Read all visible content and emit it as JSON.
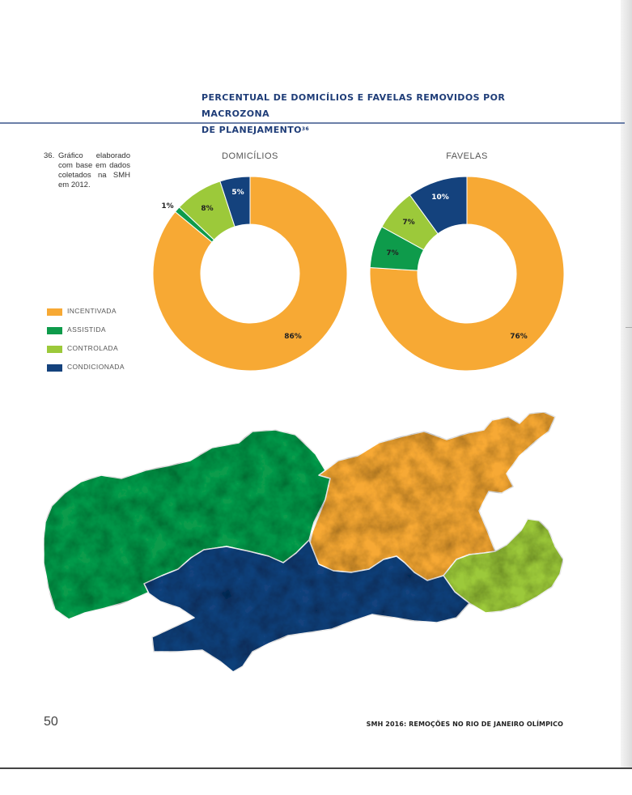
{
  "heading": {
    "line1": "PERCENTUAL DE DOMICÍLIOS E FAVELAS REMOVIDOS POR MACROZONA",
    "line2": "DE PLANEJAMENTO",
    "superscript": "36"
  },
  "footnote": {
    "number": "36.",
    "text": "Gráfico elaborado com base em dados coletados na SMH em 2012."
  },
  "legend": [
    {
      "label": "INCENTIVADA",
      "color": "#f7a934"
    },
    {
      "label": "ASSISTIDA",
      "color": "#0e9b4b"
    },
    {
      "label": "CONTROLADA",
      "color": "#9cc93a"
    },
    {
      "label": "CONDICIONADA",
      "color": "#14427d"
    }
  ],
  "chart_data": [
    {
      "type": "pie",
      "title": "DOMICÍLIOS",
      "donut": true,
      "categories": [
        "INCENTIVADA",
        "ASSISTIDA",
        "CONTROLADA",
        "CONDICIONADA"
      ],
      "values": [
        86,
        1,
        8,
        5
      ],
      "labels": [
        "86%",
        "1%",
        "8%",
        "5%"
      ],
      "colors": [
        "#f7a934",
        "#0e9b4b",
        "#9cc93a",
        "#14427d"
      ]
    },
    {
      "type": "pie",
      "title": "FAVELAS",
      "donut": true,
      "categories": [
        "INCENTIVADA",
        "ASSISTIDA",
        "CONTROLADA",
        "CONDICIONADA"
      ],
      "values": [
        76,
        7,
        7,
        10
      ],
      "labels": [
        "76%",
        "7%",
        "7%",
        "10%"
      ],
      "colors": [
        "#f7a934",
        "#0e9b4b",
        "#9cc93a",
        "#14427d"
      ]
    }
  ],
  "map": {
    "regions": [
      {
        "name": "ASSISTIDA",
        "color": "#0e9b4b"
      },
      {
        "name": "INCENTIVADA",
        "color": "#f7a934"
      },
      {
        "name": "CONTROLADA",
        "color": "#9cc93a"
      },
      {
        "name": "CONDICIONADA",
        "color": "#14427d"
      }
    ]
  },
  "footer": {
    "page_number": "50",
    "running_title": "SMH 2016: REMOÇÕES NO RIO DE JANEIRO OLÍMPICO"
  }
}
